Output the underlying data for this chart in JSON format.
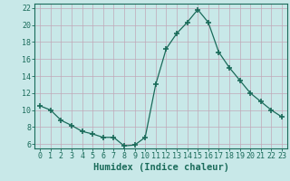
{
  "x": [
    0,
    1,
    2,
    3,
    4,
    5,
    6,
    7,
    8,
    9,
    10,
    11,
    12,
    13,
    14,
    15,
    16,
    17,
    18,
    19,
    20,
    21,
    22,
    23
  ],
  "y": [
    10.5,
    10.0,
    8.8,
    8.2,
    7.5,
    7.2,
    6.8,
    6.8,
    5.8,
    5.9,
    6.8,
    13.0,
    17.2,
    19.0,
    20.3,
    21.8,
    20.3,
    16.8,
    15.0,
    13.5,
    12.0,
    11.0,
    10.0,
    9.2
  ],
  "line_color": "#1a6b5a",
  "marker": "+",
  "marker_size": 4,
  "marker_linewidth": 1.2,
  "bg_color": "#c8e8e8",
  "grid_color": "#b0d8d0",
  "ylim": [
    5.5,
    22.5
  ],
  "xlim": [
    -0.5,
    23.5
  ],
  "yticks": [
    6,
    8,
    10,
    12,
    14,
    16,
    18,
    20,
    22
  ],
  "xticks": [
    0,
    1,
    2,
    3,
    4,
    5,
    6,
    7,
    8,
    9,
    10,
    11,
    12,
    13,
    14,
    15,
    16,
    17,
    18,
    19,
    20,
    21,
    22,
    23
  ],
  "tick_label_fontsize": 6,
  "xlabel": "Humidex (Indice chaleur)",
  "xlabel_fontsize": 7.5
}
